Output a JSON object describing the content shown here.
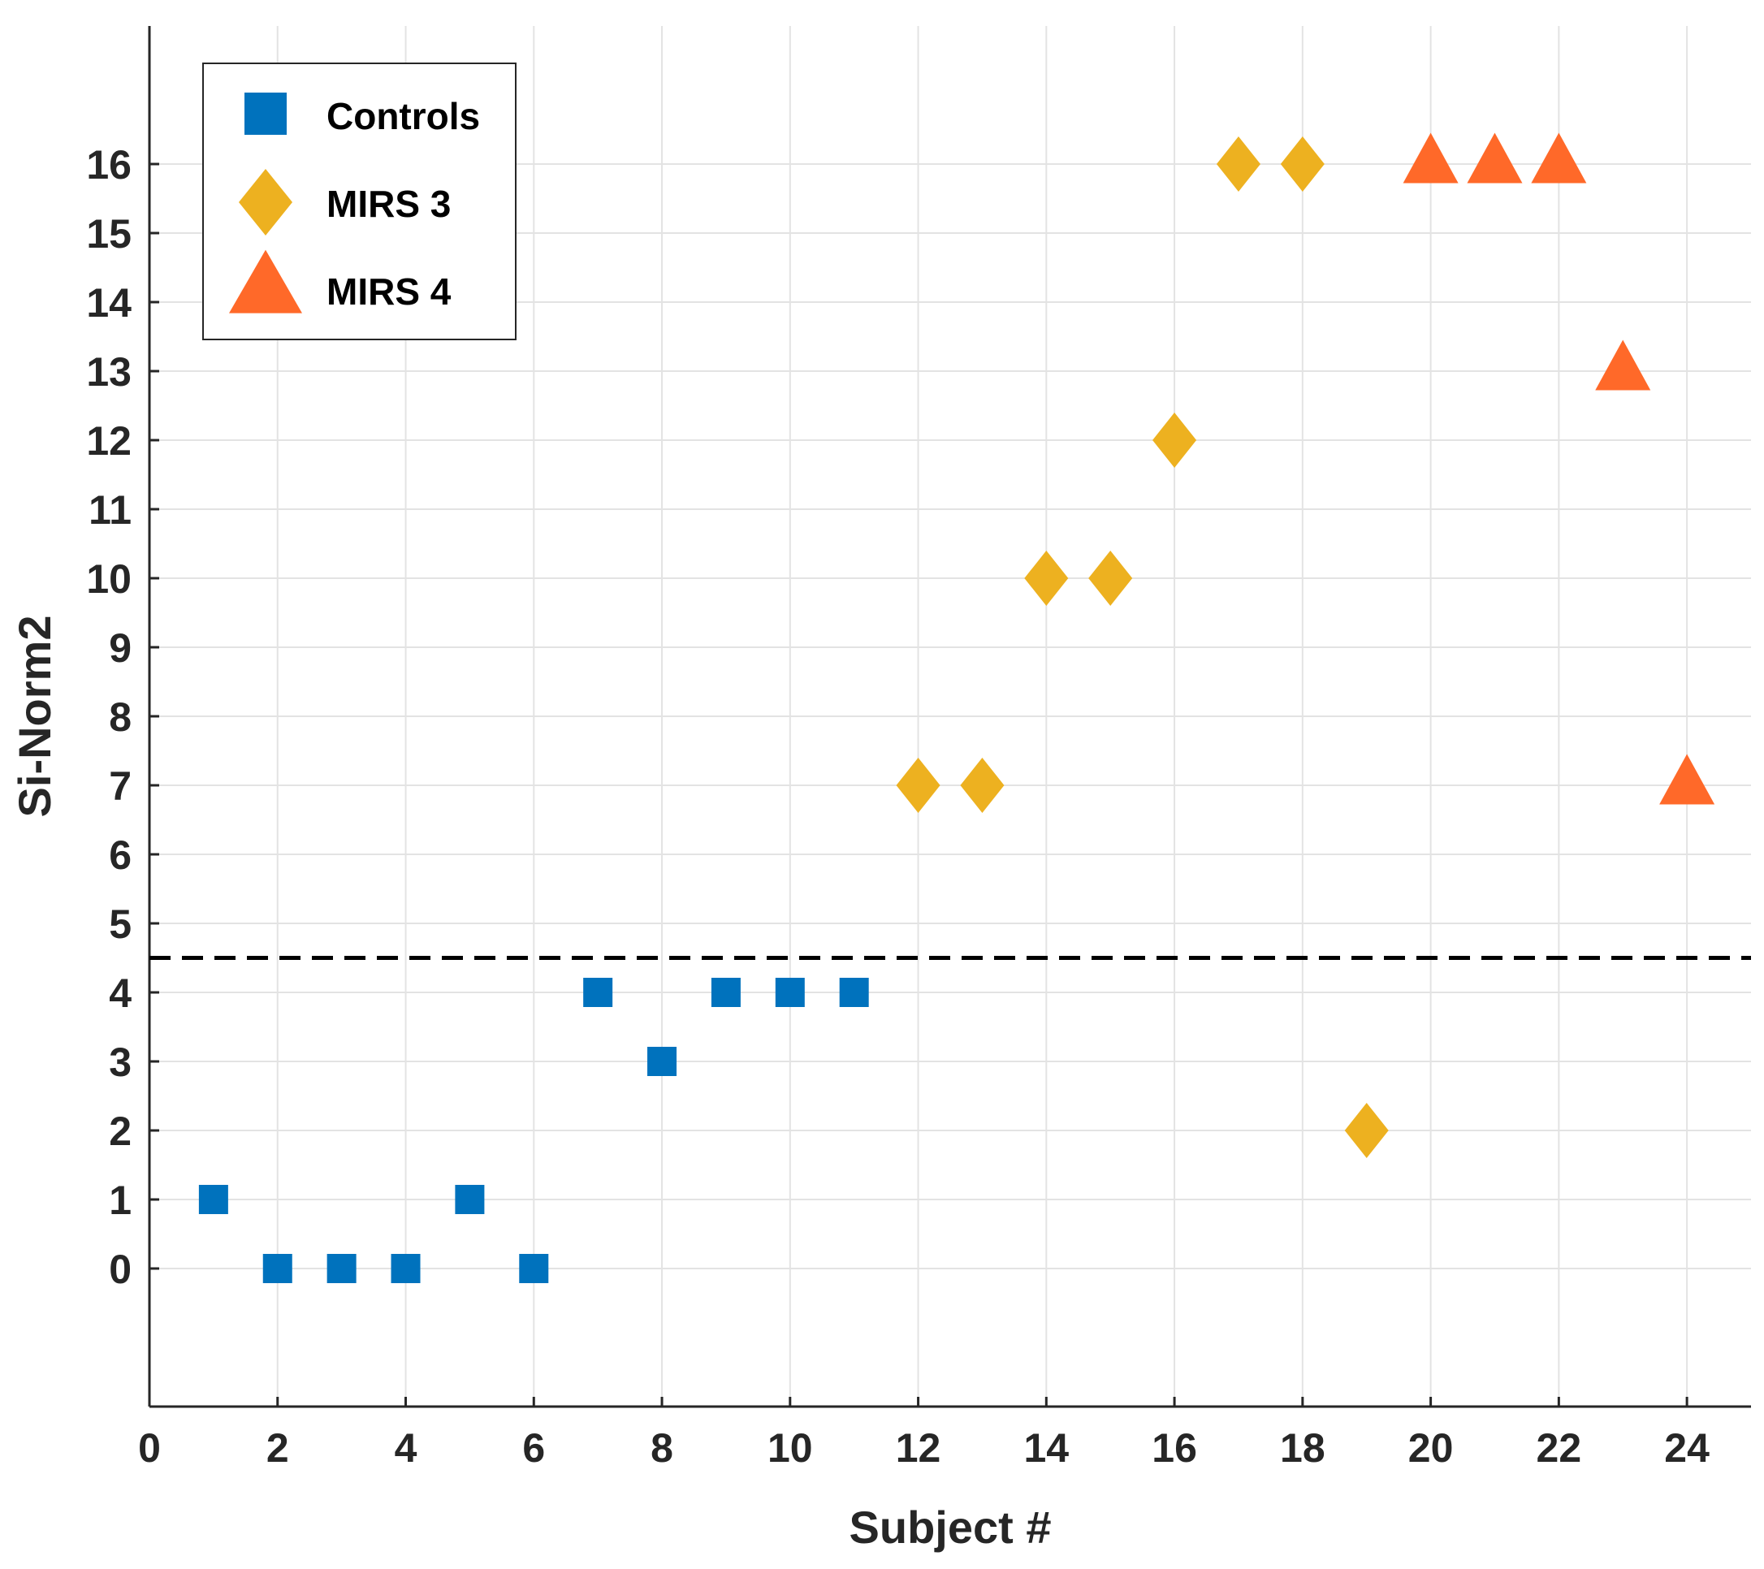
{
  "chart_data": {
    "type": "scatter",
    "title": "",
    "xlabel": "Subject #",
    "ylabel": "Si-Norm2",
    "xlim": [
      0,
      25
    ],
    "ylim": [
      -2,
      18
    ],
    "xticks": [
      0,
      2,
      4,
      6,
      8,
      10,
      12,
      14,
      16,
      18,
      20,
      22,
      24
    ],
    "yticks": [
      0,
      1,
      2,
      3,
      4,
      5,
      6,
      7,
      8,
      9,
      10,
      11,
      12,
      13,
      14,
      15,
      16
    ],
    "grid": true,
    "legend_position": "top-left",
    "threshold": {
      "y": 4.5,
      "style": "dashed",
      "color": "#000000"
    },
    "series": [
      {
        "name": "Controls",
        "marker": "square",
        "color": "#0072BD",
        "x": [
          1,
          2,
          3,
          4,
          5,
          6,
          7,
          8,
          9,
          10,
          11
        ],
        "y": [
          1,
          0,
          0,
          0,
          1,
          0,
          4,
          3,
          4,
          4,
          4
        ]
      },
      {
        "name": "MIRS 3",
        "marker": "diamond",
        "color": "#EDB120",
        "x": [
          12,
          13,
          14,
          15,
          16,
          17,
          18,
          19
        ],
        "y": [
          7,
          7,
          10,
          10,
          12,
          16,
          16,
          2
        ]
      },
      {
        "name": "MIRS 4",
        "marker": "triangle",
        "color": "#FF6929",
        "x": [
          20,
          21,
          22,
          23,
          24
        ],
        "y": [
          16,
          16,
          16,
          13,
          7
        ]
      }
    ]
  }
}
